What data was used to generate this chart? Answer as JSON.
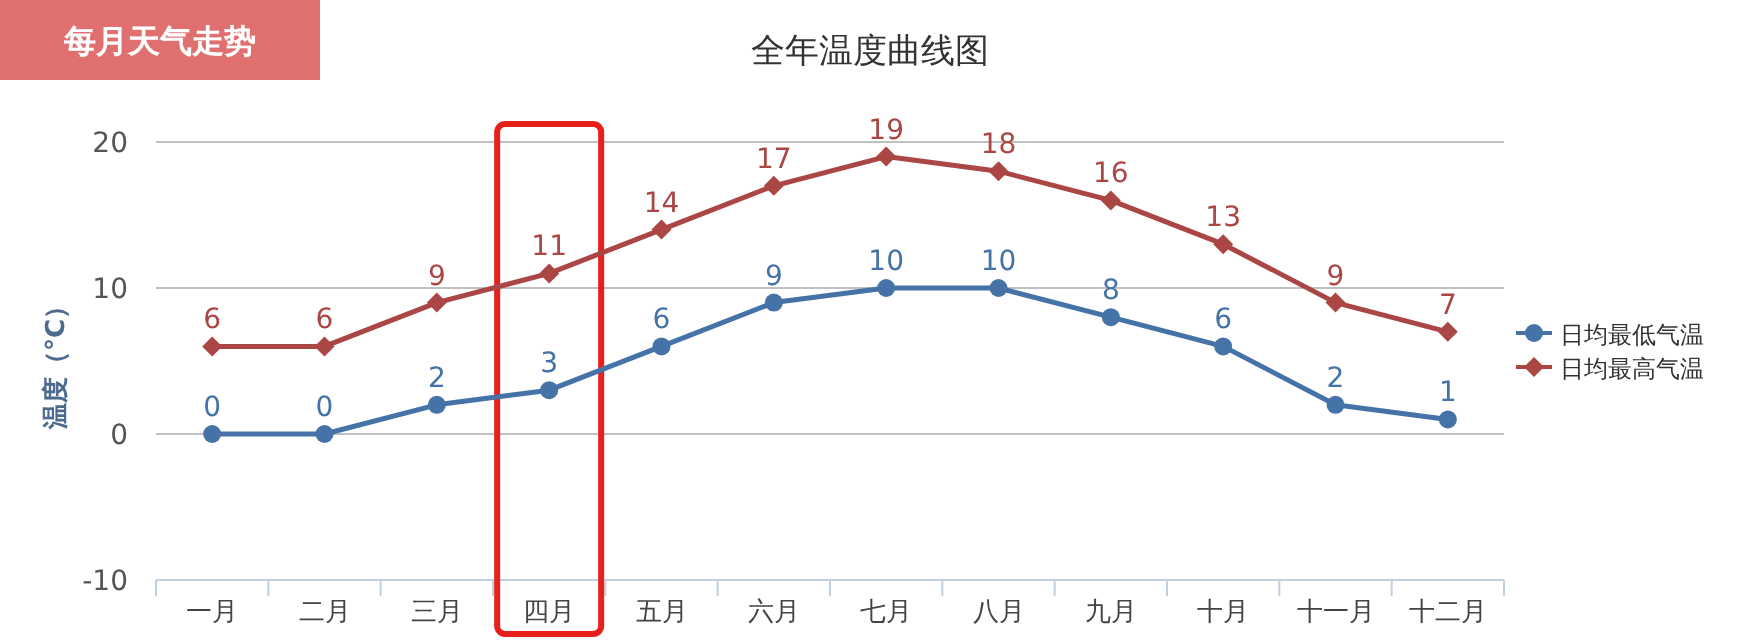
{
  "chart_data": {
    "type": "line",
    "title": "全年温度曲线图",
    "ylabel": "温度（°C）",
    "annotations": [
      "每月天气走势"
    ],
    "categories": [
      "一月",
      "二月",
      "三月",
      "四月",
      "五月",
      "六月",
      "七月",
      "八月",
      "九月",
      "十月",
      "十一月",
      "十二月"
    ],
    "series": [
      {
        "name": "日均最低气温",
        "color": "#4572a7",
        "marker": "circle",
        "values": [
          0,
          0,
          2,
          3,
          6,
          9,
          10,
          10,
          8,
          6,
          2,
          1
        ]
      },
      {
        "name": "日均最高气温",
        "color": "#aa4643",
        "marker": "diamond",
        "values": [
          6,
          6,
          9,
          11,
          14,
          17,
          19,
          18,
          16,
          13,
          9,
          7
        ]
      }
    ],
    "ylim": [
      -10,
      20
    ],
    "yticks": [
      -10,
      0,
      10,
      20
    ],
    "grid": "y",
    "legend": "right",
    "data_labels": true
  }
}
